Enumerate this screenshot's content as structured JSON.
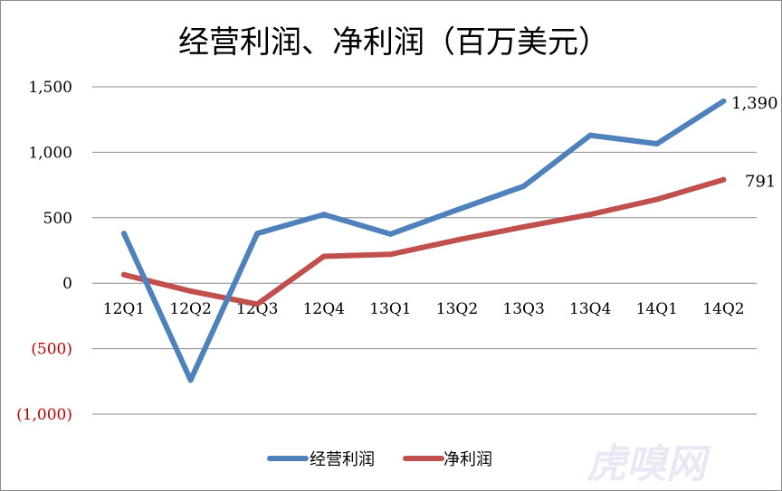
{
  "chart_data": {
    "type": "line",
    "title": "经营利润、净利润（百万美元）",
    "categories": [
      "12Q1",
      "12Q2",
      "12Q3",
      "12Q4",
      "13Q1",
      "13Q2",
      "13Q3",
      "13Q4",
      "14Q1",
      "14Q2"
    ],
    "series": [
      {
        "name": "经营利润",
        "color": "#4f81bd",
        "values": [
          380,
          -740,
          380,
          525,
          375,
          560,
          740,
          1130,
          1065,
          1390
        ],
        "end_label": "1,390"
      },
      {
        "name": "净利润",
        "color": "#c0504d",
        "values": [
          65,
          -60,
          -160,
          205,
          220,
          330,
          430,
          525,
          640,
          791
        ],
        "end_label": "791"
      }
    ],
    "y_ticks": [
      {
        "value": 1500,
        "label": "1,500"
      },
      {
        "value": 1000,
        "label": "1,000"
      },
      {
        "value": 500,
        "label": "500"
      },
      {
        "value": 0,
        "label": "0"
      },
      {
        "value": -500,
        "label": "(500)"
      },
      {
        "value": -1000,
        "label": "(1,000)"
      }
    ],
    "ylim": [
      -1000,
      1500
    ],
    "grid": true,
    "legend_position": "bottom",
    "negative_label_color": "#c00000",
    "xlabel": "",
    "ylabel": ""
  },
  "watermark": {
    "text": "虎嗅网"
  }
}
